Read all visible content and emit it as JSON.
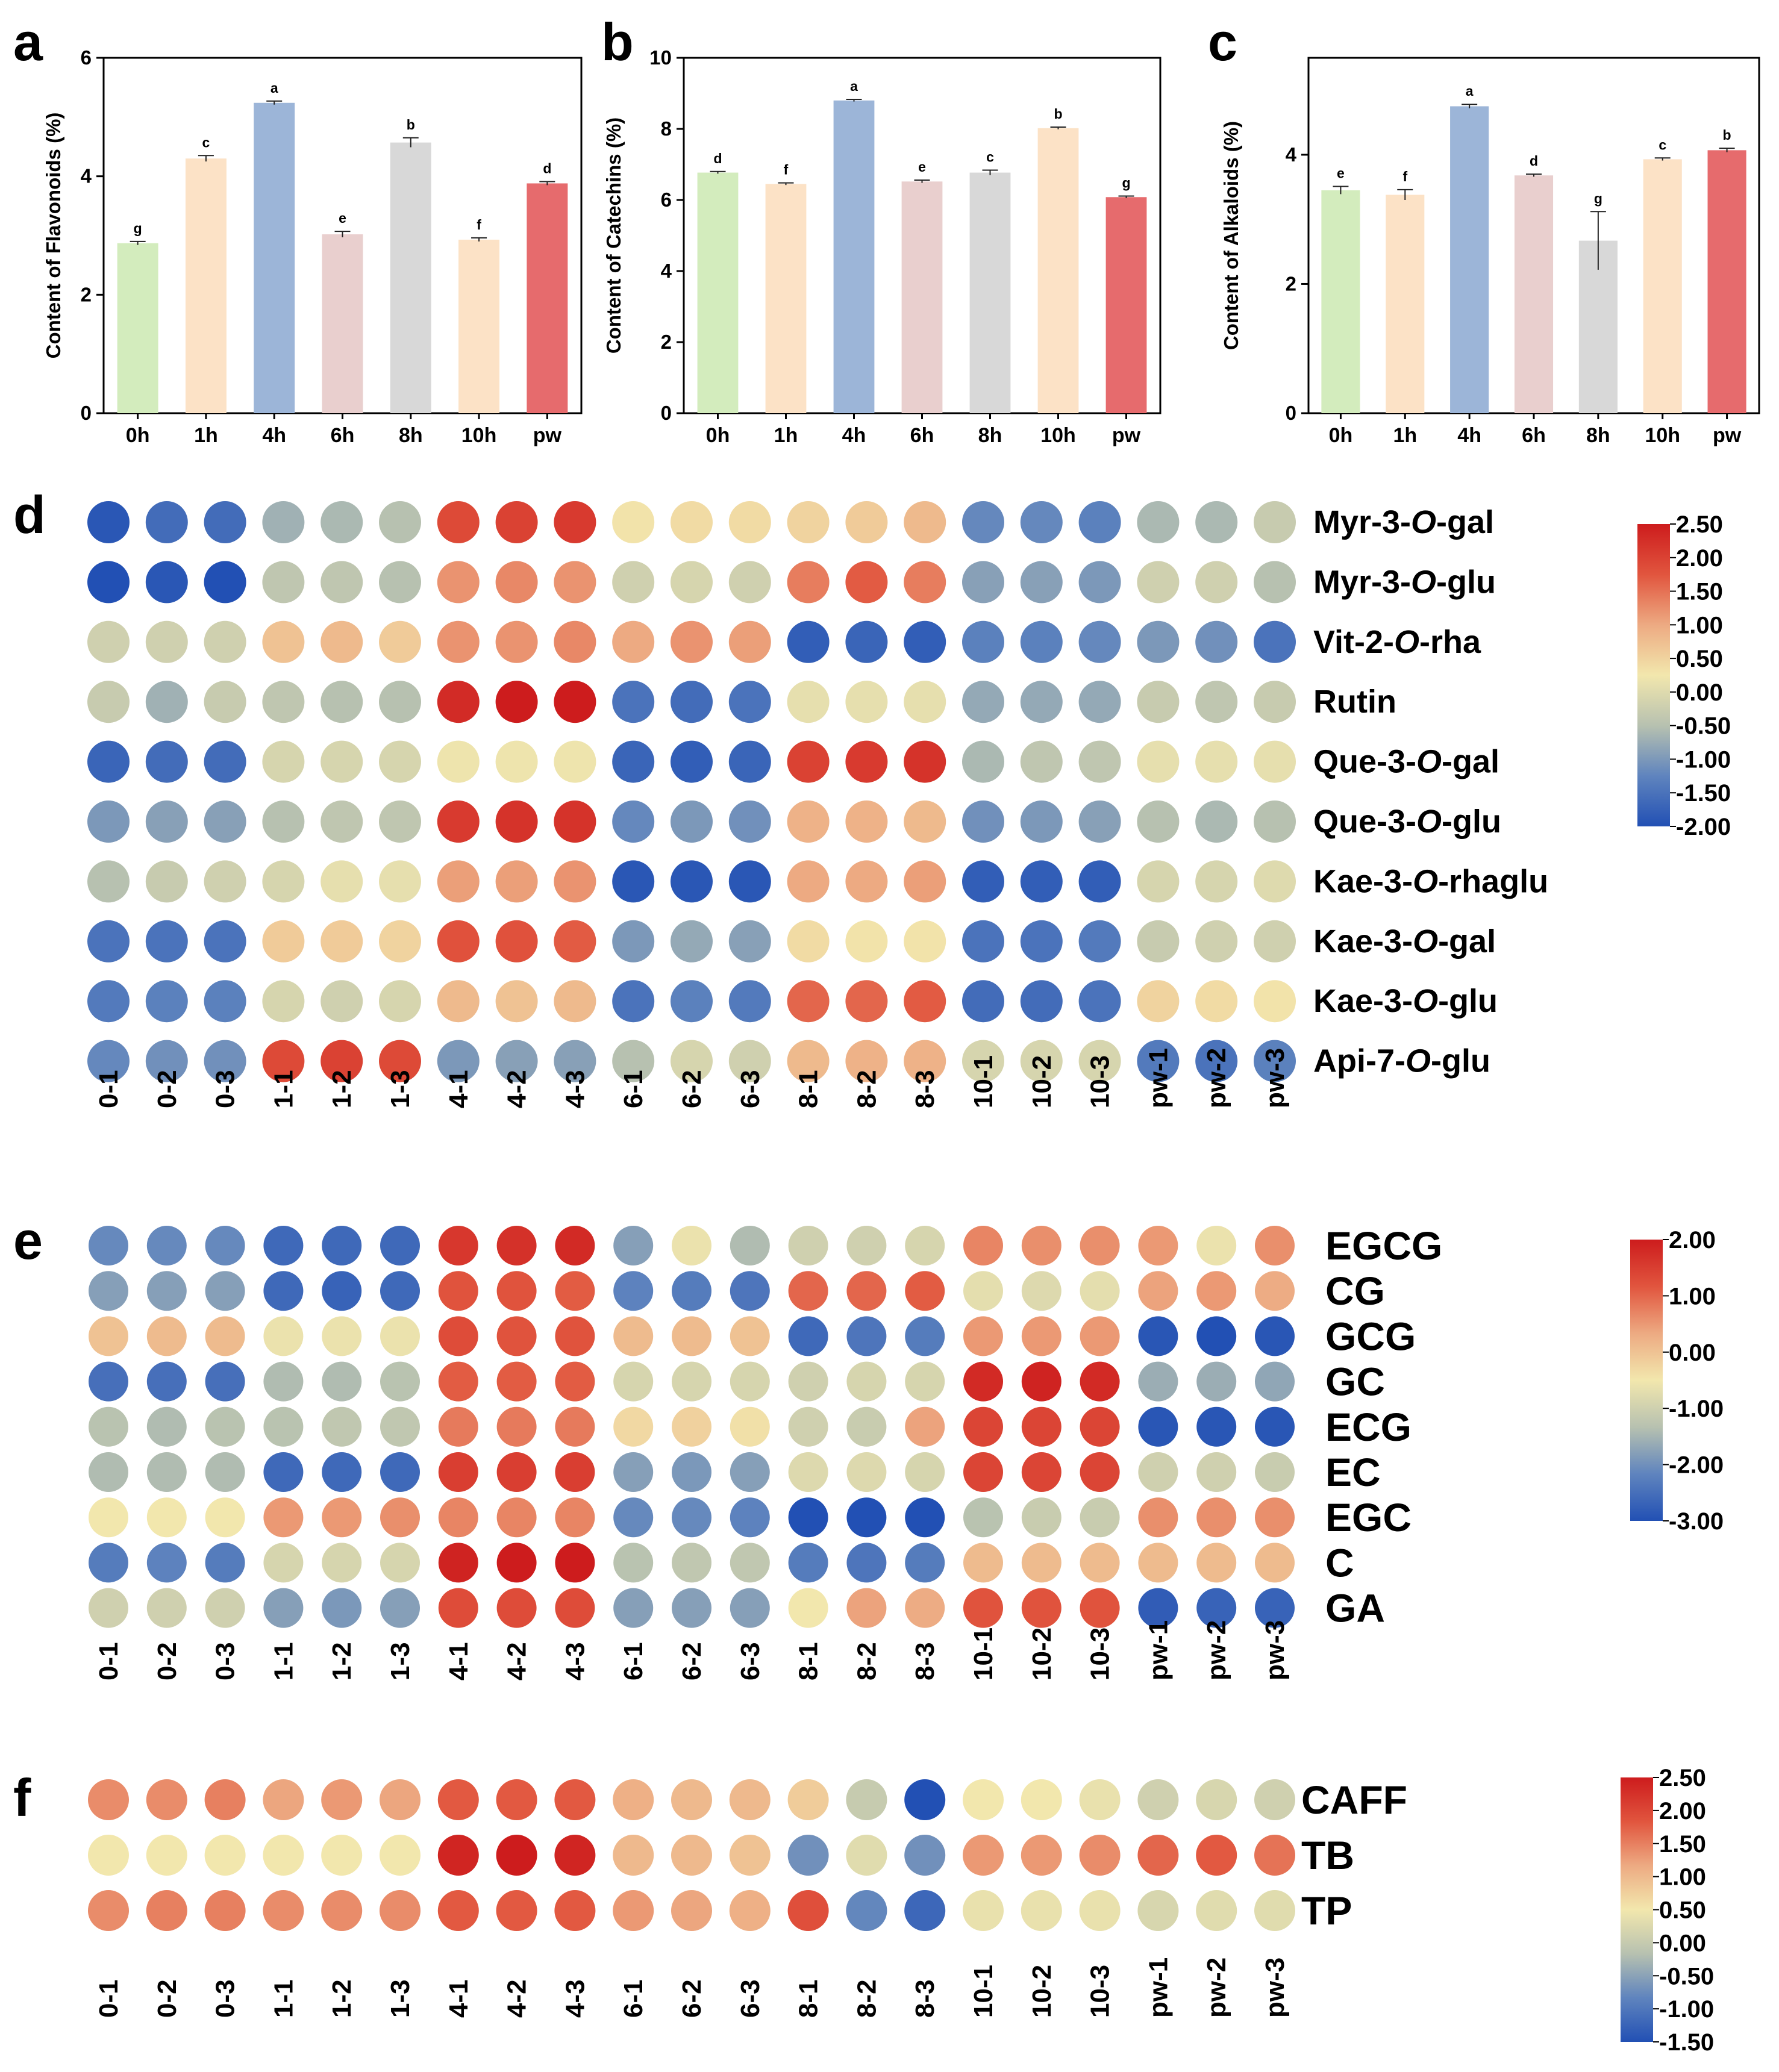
{
  "chart_data": [
    {
      "panel": "a",
      "type": "bar",
      "ylabel": "Content of Flavonoids (%)",
      "categories": [
        "0h",
        "1h",
        "4h",
        "6h",
        "8h",
        "10h",
        "pw"
      ],
      "values": [
        2.87,
        4.3,
        5.24,
        3.02,
        4.57,
        2.93,
        3.88
      ],
      "errors": [
        0.03,
        0.05,
        0.03,
        0.05,
        0.08,
        0.03,
        0.03
      ],
      "letters": [
        "g",
        "c",
        "a",
        "e",
        "b",
        "f",
        "d"
      ],
      "colors": [
        "#d3ecbd",
        "#fce2c6",
        "#9cb5d8",
        "#e9cfce",
        "#d8d8d8",
        "#fce2c6",
        "#e66b6d"
      ],
      "ylim": [
        0,
        6
      ],
      "yticks": [
        "0",
        "2",
        "4",
        "6"
      ]
    },
    {
      "panel": "b",
      "type": "bar",
      "ylabel": "Content of Catechins (%)",
      "categories": [
        "0h",
        "1h",
        "4h",
        "6h",
        "8h",
        "10h",
        "pw"
      ],
      "values": [
        6.77,
        6.45,
        8.8,
        6.52,
        6.77,
        8.02,
        6.08
      ],
      "errors": [
        0.03,
        0.03,
        0.03,
        0.04,
        0.07,
        0.03,
        0.03
      ],
      "letters": [
        "d",
        "f",
        "a",
        "e",
        "c",
        "b",
        "g"
      ],
      "colors": [
        "#d3ecbd",
        "#fce2c6",
        "#9cb5d8",
        "#e9cfce",
        "#d8d8d8",
        "#fce2c6",
        "#e66b6d"
      ],
      "ylim": [
        0,
        10
      ],
      "yticks": [
        "0",
        "2",
        "4",
        "6",
        "8",
        "10"
      ]
    },
    {
      "panel": "c",
      "type": "bar",
      "ylabel": "Content of Alkaloids (%)",
      "categories": [
        "0h",
        "1h",
        "4h",
        "6h",
        "8h",
        "10h",
        "pw"
      ],
      "values": [
        3.45,
        3.38,
        4.75,
        3.68,
        2.67,
        3.93,
        4.07
      ],
      "errors": [
        0.06,
        0.08,
        0.03,
        0.02,
        0.45,
        0.02,
        0.03
      ],
      "letters": [
        "e",
        "f",
        "a",
        "d",
        "g",
        "c",
        "b"
      ],
      "colors": [
        "#d3ecbd",
        "#fce2c6",
        "#9cb5d8",
        "#e9cfce",
        "#d8d8d8",
        "#fce2c6",
        "#e66b6d"
      ],
      "ylim": [
        0,
        5.5
      ],
      "yticks": [
        "0",
        "2",
        "4"
      ]
    },
    {
      "panel": "d",
      "type": "heatmap",
      "columns": [
        "0-1",
        "0-2",
        "0-3",
        "1-1",
        "1-2",
        "1-3",
        "4-1",
        "4-2",
        "4-3",
        "6-1",
        "6-2",
        "6-3",
        "8-1",
        "8-2",
        "8-3",
        "10-1",
        "10-2",
        "10-3",
        "pw-1",
        "pw-2",
        "pw-3"
      ],
      "rows": [
        {
          "pre": "Myr-3-",
          "it": "O",
          "post": "-gal"
        },
        {
          "pre": "Myr-3-",
          "it": "O",
          "post": "-glu"
        },
        {
          "pre": "Vit-2-",
          "it": "O",
          "post": "-rha"
        },
        {
          "pre": "Rutin",
          "it": "",
          "post": ""
        },
        {
          "pre": "Que-3-",
          "it": "O",
          "post": "-gal"
        },
        {
          "pre": "Que-3-",
          "it": "O",
          "post": "-glu"
        },
        {
          "pre": "Kae-3-",
          "it": "O",
          "post": "-rhaglu"
        },
        {
          "pre": "Kae-3-",
          "it": "O",
          "post": "-gal"
        },
        {
          "pre": "Kae-3-",
          "it": "O",
          "post": "-glu"
        },
        {
          "pre": "Api-7-",
          "it": "O",
          "post": "-glu"
        }
      ],
      "values": [
        [
          -1.9,
          -1.6,
          -1.6,
          -0.7,
          -0.6,
          -0.5,
          1.9,
          2.0,
          2.1,
          0.3,
          0.4,
          0.4,
          0.5,
          0.6,
          0.8,
          -1.2,
          -1.2,
          -1.3,
          -0.6,
          -0.6,
          -0.3
        ],
        [
          -2.0,
          -1.9,
          -2.0,
          -0.4,
          -0.4,
          -0.5,
          1.2,
          1.3,
          1.2,
          -0.2,
          -0.1,
          -0.2,
          1.4,
          1.7,
          1.4,
          -0.9,
          -0.9,
          -1.0,
          -0.2,
          -0.2,
          -0.5
        ],
        [
          -0.2,
          -0.2,
          -0.2,
          0.7,
          0.8,
          0.6,
          1.2,
          1.2,
          1.3,
          1.0,
          1.2,
          1.1,
          -1.8,
          -1.7,
          -1.8,
          -1.3,
          -1.3,
          -1.2,
          -1.0,
          -1.1,
          -1.5
        ],
        [
          -0.3,
          -0.7,
          -0.3,
          -0.4,
          -0.5,
          -0.5,
          2.3,
          2.5,
          2.5,
          -1.5,
          -1.6,
          -1.5,
          0.1,
          0.1,
          0.1,
          -0.8,
          -0.8,
          -0.8,
          -0.3,
          -0.4,
          -0.3
        ],
        [
          -1.7,
          -1.6,
          -1.6,
          -0.1,
          -0.1,
          -0.1,
          0.2,
          0.2,
          0.2,
          -1.7,
          -1.8,
          -1.7,
          2.0,
          2.1,
          2.2,
          -0.6,
          -0.4,
          -0.4,
          0.1,
          0.1,
          0.1
        ],
        [
          -1.0,
          -0.9,
          -0.9,
          -0.5,
          -0.4,
          -0.4,
          2.1,
          2.2,
          2.2,
          -1.2,
          -1.0,
          -1.1,
          0.9,
          0.9,
          0.8,
          -1.1,
          -1.0,
          -0.9,
          -0.5,
          -0.6,
          -0.5
        ],
        [
          -0.5,
          -0.3,
          -0.2,
          -0.1,
          0.1,
          0.1,
          1.1,
          1.1,
          1.2,
          -1.9,
          -1.9,
          -1.9,
          1.0,
          1.0,
          1.1,
          -1.8,
          -1.8,
          -1.8,
          -0.1,
          -0.1,
          0.0
        ],
        [
          -1.5,
          -1.5,
          -1.5,
          0.6,
          0.6,
          0.5,
          1.8,
          1.8,
          1.7,
          -1.0,
          -0.8,
          -0.9,
          0.4,
          0.3,
          0.3,
          -1.5,
          -1.5,
          -1.4,
          -0.3,
          -0.2,
          -0.2
        ],
        [
          -1.4,
          -1.3,
          -1.3,
          -0.1,
          -0.2,
          -0.1,
          0.8,
          0.7,
          0.8,
          -1.5,
          -1.3,
          -1.4,
          1.6,
          1.6,
          1.7,
          -1.6,
          -1.6,
          -1.5,
          0.5,
          0.4,
          0.3
        ],
        [
          -1.2,
          -1.1,
          -1.1,
          1.9,
          2.0,
          1.9,
          -1.0,
          -0.9,
          -0.9,
          -0.5,
          -0.1,
          -0.2,
          0.8,
          0.9,
          0.9,
          -0.1,
          -0.1,
          -0.1,
          -1.4,
          -1.5,
          -1.3
        ]
      ],
      "colorbar": {
        "min": -2.0,
        "max": 2.5,
        "ticks": [
          "2.50",
          "2.00",
          "1.50",
          "1.00",
          "0.50",
          "0.00",
          "-0.50",
          "-1.00",
          "-1.50",
          "-2.00"
        ]
      }
    },
    {
      "panel": "e",
      "type": "heatmap",
      "columns": [
        "0-1",
        "0-2",
        "0-3",
        "1-1",
        "1-2",
        "1-3",
        "4-1",
        "4-2",
        "4-3",
        "6-1",
        "6-2",
        "6-3",
        "8-1",
        "8-2",
        "8-3",
        "10-1",
        "10-2",
        "10-3",
        "pw-1",
        "pw-2",
        "pw-3"
      ],
      "rows": [
        "EGCG",
        "CG",
        "GCG",
        "GC",
        "ECG",
        "EC",
        "EGC",
        "C",
        "GA"
      ],
      "values": [
        [
          -2.1,
          -2.1,
          -2.1,
          -2.6,
          -2.6,
          -2.6,
          1.6,
          1.7,
          1.8,
          -1.8,
          -0.6,
          -1.4,
          -1.0,
          -1.0,
          -0.9,
          0.7,
          0.6,
          0.6,
          0.5,
          -0.6,
          0.6
        ],
        [
          -1.8,
          -1.8,
          -1.8,
          -2.6,
          -2.7,
          -2.6,
          1.2,
          1.2,
          1.1,
          -2.2,
          -2.3,
          -2.4,
          1.0,
          1.0,
          1.1,
          -0.7,
          -0.8,
          -0.7,
          0.4,
          0.5,
          0.3
        ],
        [
          0.0,
          0.1,
          0.1,
          -0.6,
          -0.6,
          -0.6,
          1.3,
          1.2,
          1.2,
          0.1,
          0.1,
          0.0,
          -2.6,
          -2.4,
          -2.3,
          0.5,
          0.5,
          0.5,
          -2.9,
          -3.0,
          -2.9
        ],
        [
          -2.5,
          -2.5,
          -2.5,
          -1.4,
          -1.4,
          -1.3,
          1.1,
          1.1,
          1.1,
          -0.9,
          -0.9,
          -0.9,
          -1.0,
          -0.9,
          -0.9,
          1.8,
          1.9,
          1.8,
          -1.6,
          -1.6,
          -1.7
        ],
        [
          -1.3,
          -1.4,
          -1.3,
          -1.3,
          -1.2,
          -1.2,
          0.8,
          0.8,
          0.8,
          -0.3,
          -0.2,
          -0.4,
          -1.0,
          -1.1,
          0.4,
          1.4,
          1.4,
          1.4,
          -2.9,
          -2.9,
          -2.9
        ],
        [
          -1.4,
          -1.4,
          -1.4,
          -2.6,
          -2.6,
          -2.6,
          1.5,
          1.5,
          1.5,
          -1.8,
          -1.9,
          -1.8,
          -0.8,
          -0.8,
          -0.9,
          1.4,
          1.4,
          1.4,
          -1.0,
          -1.0,
          -1.1
        ],
        [
          -0.5,
          -0.5,
          -0.5,
          0.5,
          0.5,
          0.6,
          0.7,
          0.7,
          0.7,
          -2.1,
          -2.1,
          -2.2,
          -3.0,
          -3.0,
          -3.0,
          -1.3,
          -1.1,
          -1.1,
          0.6,
          0.6,
          0.6
        ],
        [
          -2.3,
          -2.2,
          -2.3,
          -0.9,
          -0.9,
          -0.9,
          1.9,
          2.0,
          2.0,
          -1.3,
          -1.2,
          -1.2,
          -2.3,
          -2.4,
          -2.3,
          0.1,
          0.1,
          0.1,
          0.1,
          0.1,
          0.1
        ],
        [
          -1.0,
          -1.0,
          -1.0,
          -1.8,
          -1.9,
          -1.8,
          1.3,
          1.3,
          1.3,
          -1.8,
          -1.8,
          -1.8,
          -0.5,
          0.4,
          0.3,
          1.2,
          1.2,
          1.2,
          -2.8,
          -2.7,
          -2.7
        ]
      ],
      "colorbar": {
        "min": -3.0,
        "max": 2.0,
        "ticks": [
          "2.00",
          "1.00",
          "0.00",
          "-1.00",
          "-2.00",
          "-3.00"
        ]
      }
    },
    {
      "panel": "f",
      "type": "heatmap",
      "columns": [
        "0-1",
        "0-2",
        "0-3",
        "1-1",
        "1-2",
        "1-3",
        "4-1",
        "4-2",
        "4-3",
        "6-1",
        "6-2",
        "6-3",
        "8-1",
        "8-2",
        "8-3",
        "10-1",
        "10-2",
        "10-3",
        "pw-1",
        "pw-2",
        "pw-3"
      ],
      "rows": [
        "CAFF",
        "TB",
        "TP"
      ],
      "values": [
        [
          1.4,
          1.4,
          1.5,
          1.2,
          1.3,
          1.2,
          1.8,
          1.8,
          1.8,
          1.1,
          1.0,
          1.0,
          0.8,
          0.0,
          -1.5,
          0.5,
          0.5,
          0.4,
          0.1,
          0.2,
          0.1
        ],
        [
          0.5,
          0.5,
          0.5,
          0.5,
          0.5,
          0.5,
          2.4,
          2.5,
          2.4,
          1.0,
          1.0,
          0.9,
          -0.7,
          0.3,
          -0.7,
          1.3,
          1.3,
          1.4,
          1.7,
          1.8,
          1.6
        ],
        [
          1.4,
          1.5,
          1.5,
          1.4,
          1.4,
          1.4,
          1.8,
          1.8,
          1.8,
          1.3,
          1.2,
          1.1,
          1.9,
          -0.8,
          -1.2,
          0.4,
          0.4,
          0.4,
          0.2,
          0.3,
          0.3
        ]
      ],
      "colorbar": {
        "min": -1.5,
        "max": 2.5,
        "ticks": [
          "2.50",
          "2.00",
          "1.50",
          "1.00",
          "0.50",
          "0.00",
          "-0.50",
          "-1.00",
          "-1.50"
        ]
      }
    }
  ],
  "colormap": [
    "#2250b4",
    "#5f84be",
    "#b7c1b0",
    "#f2e7ad",
    "#edaa82",
    "#e1553e",
    "#cd1c1d"
  ]
}
